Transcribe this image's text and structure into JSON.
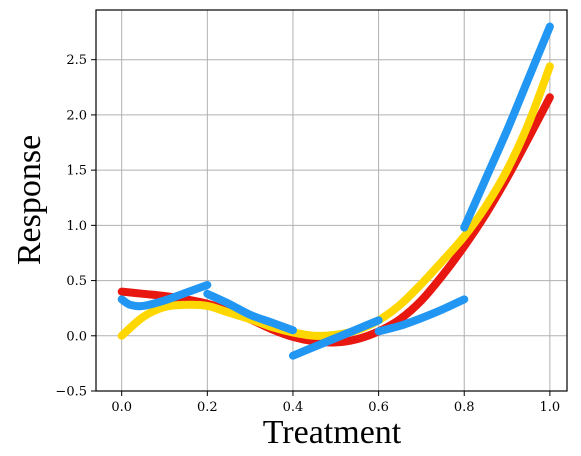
{
  "chart_data": {
    "type": "line",
    "title": "",
    "xlabel": "Treatment",
    "ylabel": "Response",
    "xlim": [
      -0.06,
      1.04
    ],
    "ylim": [
      -0.5,
      2.95
    ],
    "xticks": [
      0.0,
      0.2,
      0.4,
      0.6,
      0.8,
      1.0
    ],
    "xtick_labels": [
      "0.0",
      "0.2",
      "0.4",
      "0.6",
      "0.8",
      "1.0"
    ],
    "yticks": [
      -0.5,
      0.0,
      0.5,
      1.0,
      1.5,
      2.0,
      2.5
    ],
    "ytick_labels": [
      "−0.5",
      "0.0",
      "0.5",
      "1.0",
      "1.5",
      "2.0",
      "2.5"
    ],
    "grid": true,
    "legend": "none",
    "series": [
      {
        "color": "#e8170f",
        "x": [
          0.0,
          0.05,
          0.1,
          0.15,
          0.2,
          0.25,
          0.3,
          0.35,
          0.4,
          0.45,
          0.5,
          0.55,
          0.6,
          0.65,
          0.7,
          0.75,
          0.8,
          0.85,
          0.9,
          0.95,
          1.0
        ],
        "y": [
          0.4,
          0.38,
          0.36,
          0.33,
          0.29,
          0.23,
          0.15,
          0.06,
          -0.01,
          -0.05,
          -0.06,
          -0.03,
          0.04,
          0.15,
          0.32,
          0.55,
          0.81,
          1.1,
          1.43,
          1.79,
          2.16
        ]
      },
      {
        "color": "#ffd700",
        "x": [
          0.0,
          0.05,
          0.1,
          0.15,
          0.2,
          0.25,
          0.3,
          0.35,
          0.4,
          0.45,
          0.5,
          0.55,
          0.6,
          0.65,
          0.7,
          0.75,
          0.8,
          0.85,
          0.9,
          0.95,
          1.0
        ],
        "y": [
          0.0,
          0.17,
          0.26,
          0.28,
          0.27,
          0.21,
          0.15,
          0.08,
          0.03,
          0.0,
          0.01,
          0.05,
          0.14,
          0.28,
          0.47,
          0.68,
          0.9,
          1.17,
          1.5,
          1.92,
          2.44
        ]
      },
      {
        "color": "#2196f3",
        "segments": [
          {
            "x": [
              0.0,
              0.02,
              0.05,
              0.1,
              0.15,
              0.2
            ],
            "y": [
              0.33,
              0.28,
              0.27,
              0.32,
              0.39,
              0.46
            ]
          },
          {
            "x": [
              0.2,
              0.25,
              0.3,
              0.35,
              0.4
            ],
            "y": [
              0.38,
              0.29,
              0.19,
              0.12,
              0.05
            ]
          },
          {
            "x": [
              0.4,
              0.45,
              0.5,
              0.55,
              0.6
            ],
            "y": [
              -0.18,
              -0.1,
              -0.02,
              0.06,
              0.14
            ]
          },
          {
            "x": [
              0.6,
              0.65,
              0.7,
              0.75,
              0.8
            ],
            "y": [
              0.04,
              0.09,
              0.16,
              0.24,
              0.33
            ]
          },
          {
            "x": [
              0.8,
              0.85,
              0.9,
              0.95,
              1.0
            ],
            "y": [
              0.98,
              1.42,
              1.86,
              2.33,
              2.8
            ]
          }
        ]
      }
    ]
  }
}
